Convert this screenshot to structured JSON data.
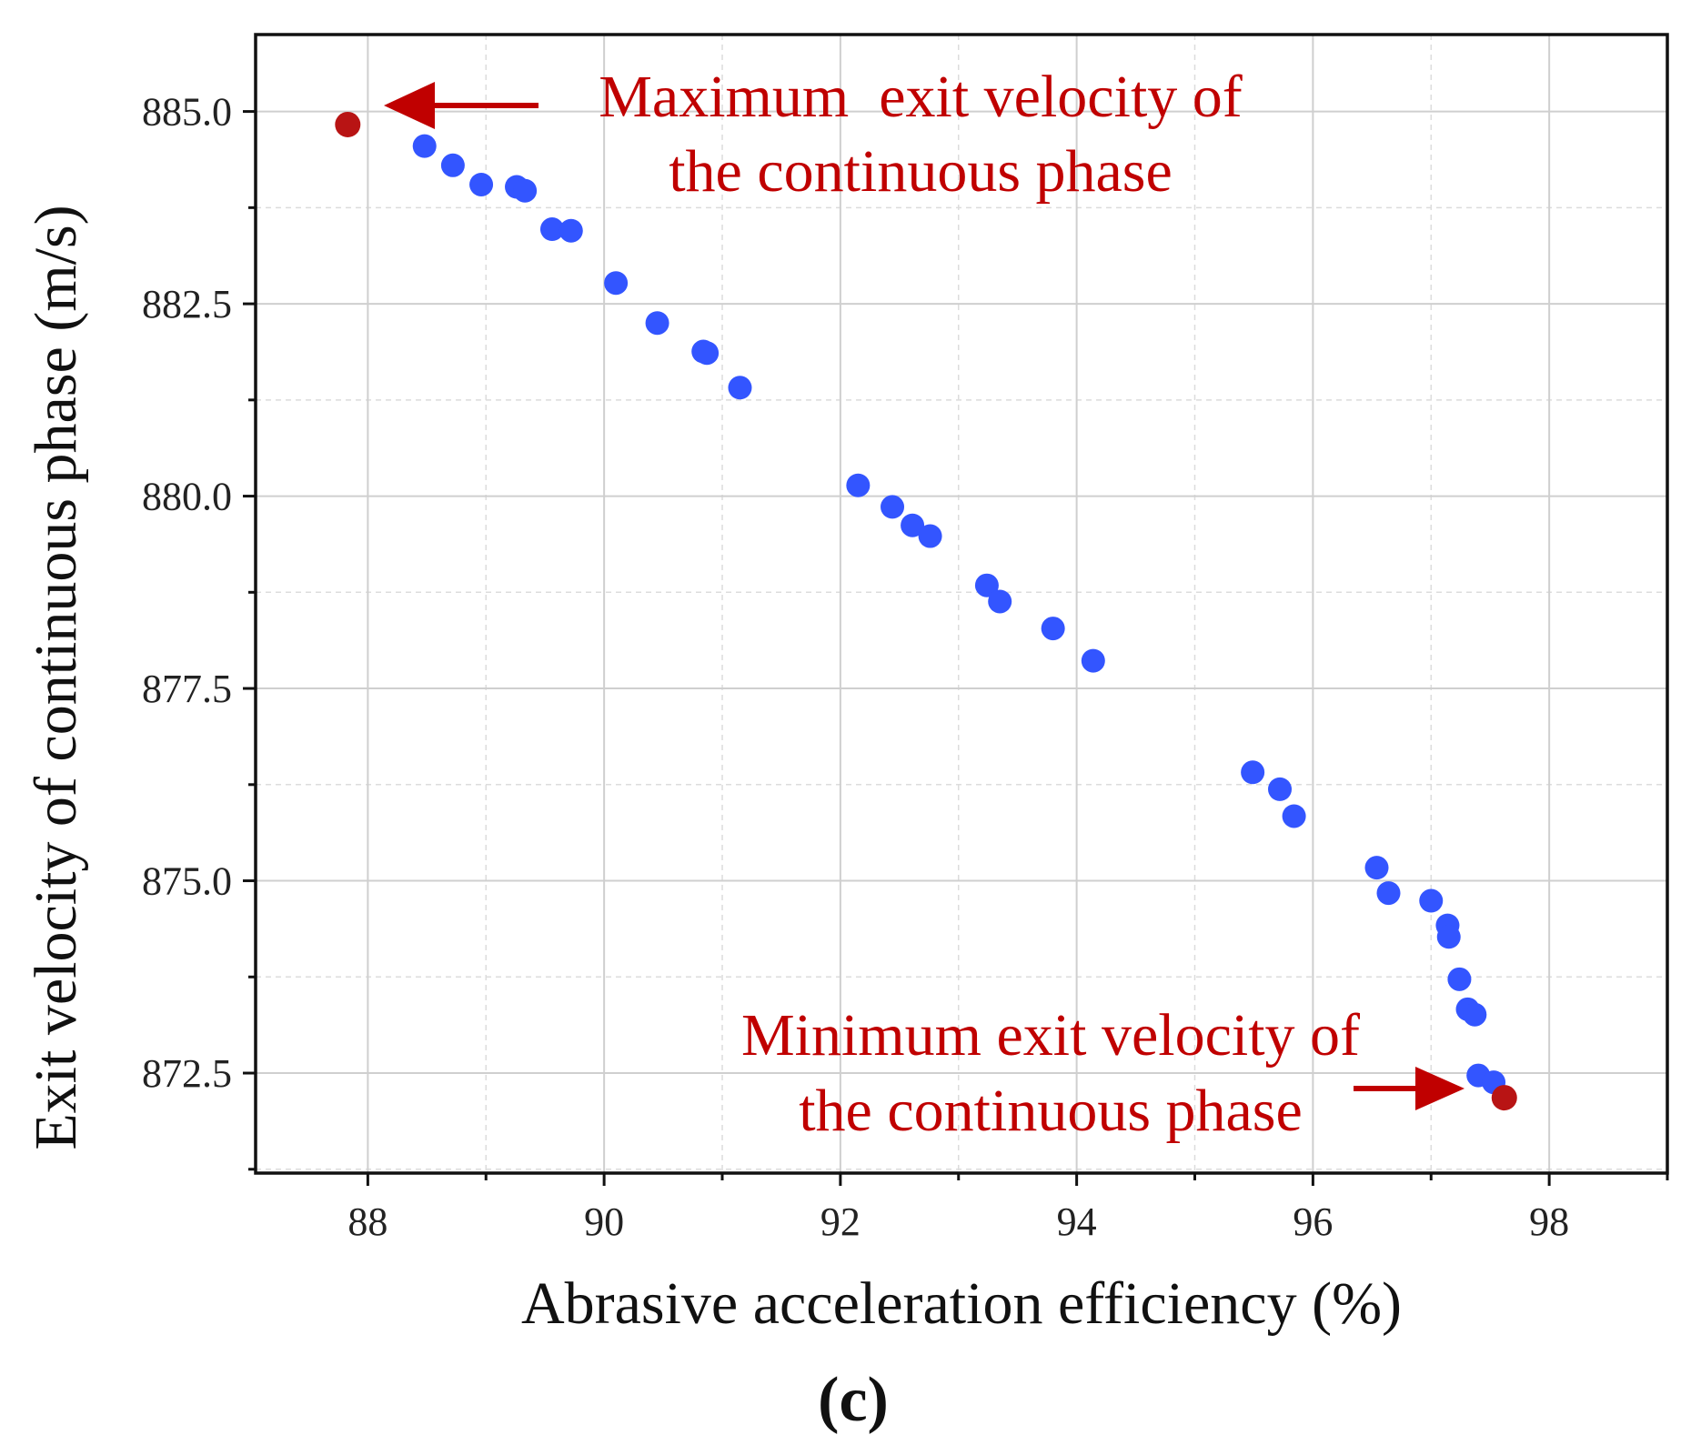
{
  "chart_data": {
    "type": "scatter",
    "xlabel": "Abrasive acceleration efficiency (%)",
    "ylabel": "Exit velocity of continuous phase (m/s)",
    "panel_label": "(c)",
    "xlim": [
      87.05,
      99.0
    ],
    "ylim": [
      871.2,
      886.0
    ],
    "xticks": [
      88,
      90,
      92,
      94,
      96,
      98
    ],
    "xtick_labels": [
      "88",
      "90",
      "92",
      "94",
      "96",
      "98"
    ],
    "yticks": [
      872.5,
      875.0,
      877.5,
      880.0,
      882.5,
      885.0
    ],
    "ytick_labels": [
      "872.5",
      "875.0",
      "877.5",
      "880.0",
      "882.5",
      "885.0"
    ],
    "grid": true,
    "colors": {
      "points": "#3355ff",
      "highlight": "#b81414",
      "annotation": "#c00000",
      "grid_major": "#cfcfcf",
      "grid_minor": "#dcdcdc",
      "axis": "#111111"
    },
    "series": [
      {
        "name": "pareto-points",
        "x": [
          88.48,
          88.72,
          88.96,
          89.26,
          89.33,
          89.56,
          89.72,
          90.1,
          90.45,
          90.84,
          90.87,
          91.15,
          92.15,
          92.44,
          92.61,
          92.76,
          93.24,
          93.35,
          93.8,
          94.14,
          95.49,
          95.72,
          95.84,
          96.54,
          96.64,
          97.0,
          97.14,
          97.15,
          97.24,
          97.31,
          97.37,
          97.4,
          97.53
        ],
        "y": [
          884.55,
          884.3,
          884.05,
          884.02,
          883.97,
          883.47,
          883.45,
          882.77,
          882.25,
          881.88,
          881.86,
          881.41,
          880.14,
          879.86,
          879.62,
          879.48,
          878.84,
          878.63,
          878.28,
          877.86,
          876.41,
          876.19,
          875.84,
          875.17,
          874.84,
          874.74,
          874.42,
          874.27,
          873.72,
          873.33,
          873.26,
          872.47,
          872.38
        ]
      },
      {
        "name": "extremes",
        "x": [
          87.83,
          97.62
        ],
        "y": [
          884.83,
          872.18
        ]
      }
    ],
    "annotations": [
      {
        "id": "max",
        "lines": [
          "Maximum  exit velocity of",
          "the continuous phase"
        ]
      },
      {
        "id": "min",
        "lines": [
          "Minimum exit velocity of",
          "the continuous phase"
        ]
      }
    ]
  }
}
